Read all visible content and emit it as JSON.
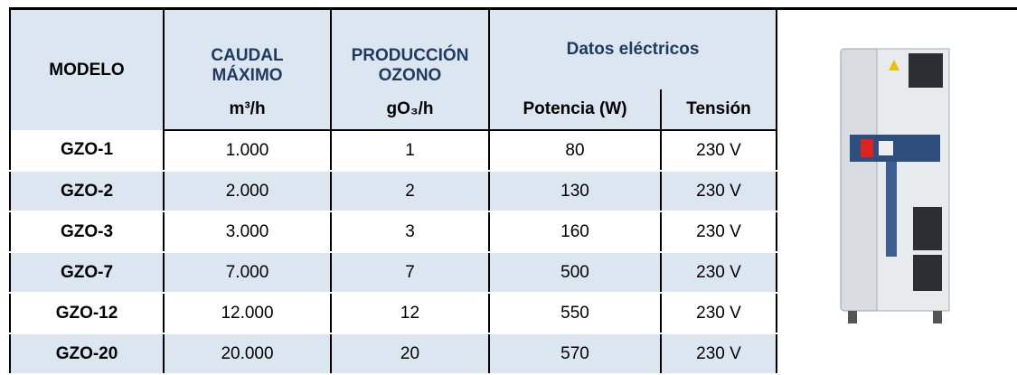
{
  "table": {
    "header": {
      "model": "MODELO",
      "flow": "CAUDAL MÁXIMO",
      "flow_unit": "m³/h",
      "ozone": "PRODUCCIÓN OZONO",
      "ozone_unit": "gO₃/h",
      "electrical": "Datos eléctricos",
      "power": "Potencia (W)",
      "voltage": "Tensión"
    },
    "rows": [
      [
        "GZO-1",
        "1.000",
        "1",
        "80",
        "230 V"
      ],
      [
        "GZO-2",
        "2.000",
        "2",
        "130",
        "230 V"
      ],
      [
        "GZO-3",
        "3.000",
        "3",
        "160",
        "230 V"
      ],
      [
        "GZO-7",
        "7.000",
        "7",
        "500",
        "230 V"
      ],
      [
        "GZO-12",
        "12.000",
        "12",
        "550",
        "230 V"
      ],
      [
        "GZO-20",
        "20.000",
        "20",
        "570",
        "230 V"
      ]
    ]
  }
}
